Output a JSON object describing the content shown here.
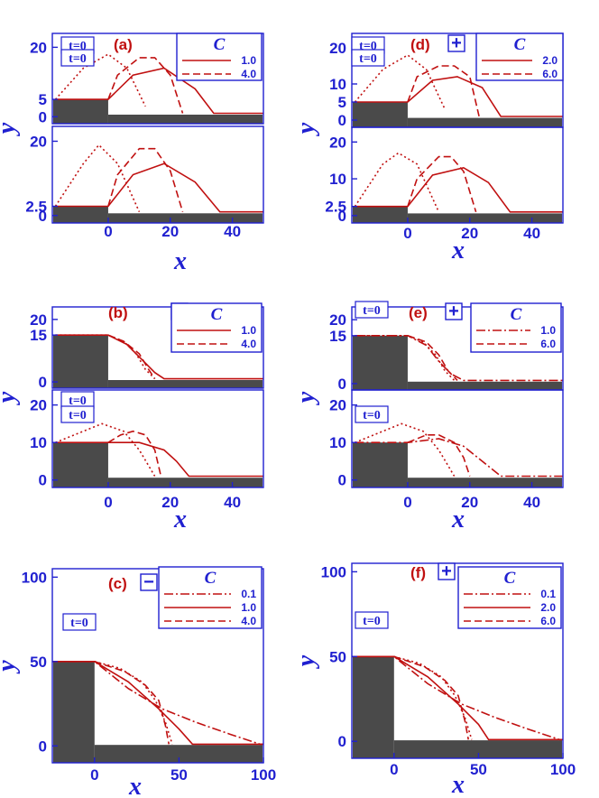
{
  "colors": {
    "axis": "#2020d0",
    "curve": "#c01010",
    "obstacle": "#4a4a4a"
  },
  "chart_data": [
    {
      "id": "a",
      "type": "line",
      "label": "(a)",
      "sign": "−",
      "sign_icon": "minus-box-icon",
      "x_label": "x",
      "y_label": "y",
      "x_ticks": [
        "0",
        "20",
        "40"
      ],
      "legend": {
        "title": "C",
        "values": [
          "1.0",
          "4.0"
        ],
        "styles": [
          "solid",
          "dashed"
        ]
      },
      "panels": [
        {
          "step_height": 5,
          "y_ticks": [
            "20",
            "5",
            "0"
          ],
          "annotation": "t=0",
          "series": [
            {
              "name": "t=0",
              "style": "dotted",
              "x": [
                -17,
                -8,
                0,
                6,
                12
              ],
              "y": [
                5,
                14,
                18,
                14,
                3
              ]
            },
            {
              "name": "1.0",
              "style": "solid",
              "x": [
                -17,
                0,
                8,
                18,
                28,
                34,
                50
              ],
              "y": [
                5,
                5,
                12,
                14,
                8,
                1,
                1
              ]
            },
            {
              "name": "4.0",
              "style": "dashed",
              "x": [
                0,
                3,
                10,
                15,
                20,
                24
              ],
              "y": [
                5,
                12,
                17,
                17,
                12,
                1
              ]
            }
          ]
        },
        {
          "step_height": 2.5,
          "y_ticks": [
            "20",
            "2.5",
            "0"
          ],
          "annotation": "t=0",
          "series": [
            {
              "name": "t=0",
              "style": "dotted",
              "x": [
                -17,
                -8,
                -3,
                3,
                10
              ],
              "y": [
                2.5,
                14,
                19,
                14,
                1
              ]
            },
            {
              "name": "1.0",
              "style": "solid",
              "x": [
                -17,
                0,
                8,
                18,
                28,
                36,
                50
              ],
              "y": [
                2.5,
                2.5,
                11,
                14,
                9,
                1,
                1
              ]
            },
            {
              "name": "4.0",
              "style": "dashed",
              "x": [
                0,
                3,
                10,
                15,
                20,
                24
              ],
              "y": [
                2.5,
                11,
                18,
                18,
                12,
                1
              ]
            }
          ]
        }
      ]
    },
    {
      "id": "d",
      "type": "line",
      "label": "(d)",
      "sign": "+",
      "sign_icon": "plus-box-icon",
      "x_label": "x",
      "y_label": "y",
      "x_ticks": [
        "0",
        "20",
        "40"
      ],
      "legend": {
        "title": "C",
        "values": [
          "2.0",
          "6.0"
        ],
        "styles": [
          "solid",
          "dashed"
        ]
      },
      "panels": [
        {
          "step_height": 5,
          "y_ticks": [
            "20",
            "10",
            "5",
            "0"
          ],
          "annotation": "t=0",
          "series": [
            {
              "name": "t=0",
              "style": "dotted",
              "x": [
                -17,
                -8,
                0,
                6,
                12
              ],
              "y": [
                5,
                14,
                18,
                14,
                3
              ]
            },
            {
              "name": "2.0",
              "style": "solid",
              "x": [
                -17,
                0,
                8,
                16,
                24,
                30,
                50
              ],
              "y": [
                5,
                5,
                11,
                12,
                9,
                1,
                1
              ]
            },
            {
              "name": "6.0",
              "style": "dashed",
              "x": [
                0,
                3,
                10,
                15,
                20,
                23
              ],
              "y": [
                5,
                12,
                15,
                15,
                12,
                1
              ]
            }
          ]
        },
        {
          "step_height": 2.5,
          "y_ticks": [
            "20",
            "10",
            "2.5",
            "0"
          ],
          "annotation": "t=0",
          "series": [
            {
              "name": "t=0",
              "style": "dotted",
              "x": [
                -17,
                -8,
                -3,
                3,
                10
              ],
              "y": [
                2.5,
                14,
                17,
                14,
                1
              ]
            },
            {
              "name": "2.0",
              "style": "solid",
              "x": [
                -17,
                0,
                8,
                18,
                26,
                33,
                50
              ],
              "y": [
                2.5,
                2.5,
                11,
                13,
                9,
                1,
                1
              ]
            },
            {
              "name": "6.0",
              "style": "dashed",
              "x": [
                0,
                3,
                10,
                14,
                18,
                22
              ],
              "y": [
                2.5,
                10,
                16,
                16,
                12,
                1
              ]
            }
          ]
        }
      ]
    },
    {
      "id": "b",
      "type": "line",
      "label": "(b)",
      "sign": "−",
      "sign_icon": "minus-box-icon",
      "x_label": "x",
      "y_label": "y",
      "x_ticks": [
        "0",
        "20",
        "40"
      ],
      "legend": {
        "title": "C",
        "values": [
          "1.0",
          "4.0"
        ],
        "styles": [
          "solid",
          "dashed"
        ]
      },
      "panels": [
        {
          "step_height": 15,
          "y_ticks": [
            "20",
            "15",
            "0"
          ],
          "annotation": "t=0",
          "series": [
            {
              "name": "t=0",
              "style": "dotted",
              "x": [
                -17,
                0,
                5,
                9,
                12,
                15
              ],
              "y": [
                15,
                15,
                13,
                9,
                4,
                1
              ]
            },
            {
              "name": "1.0",
              "style": "solid",
              "x": [
                -17,
                0,
                6,
                11,
                15,
                18,
                50
              ],
              "y": [
                15,
                15,
                12,
                7,
                3,
                1,
                1
              ]
            },
            {
              "name": "4.0",
              "style": "dashed",
              "x": [
                0,
                5,
                10,
                13,
                15
              ],
              "y": [
                15,
                13,
                9,
                4,
                1
              ]
            }
          ]
        },
        {
          "step_height": 10,
          "y_ticks": [
            "20",
            "10",
            "0"
          ],
          "annotation": "t=0",
          "series": [
            {
              "name": "t=0",
              "style": "dotted",
              "x": [
                -17,
                -8,
                -2,
                5,
                10,
                15
              ],
              "y": [
                10,
                13,
                15,
                13,
                8,
                1
              ]
            },
            {
              "name": "1.0",
              "style": "solid",
              "x": [
                -17,
                0,
                10,
                18,
                22,
                26,
                50
              ],
              "y": [
                10,
                10,
                10,
                8,
                5,
                1,
                1
              ]
            },
            {
              "name": "4.0",
              "style": "dashed",
              "x": [
                0,
                4,
                8,
                12,
                15,
                17
              ],
              "y": [
                10,
                12,
                13,
                12,
                8,
                1
              ]
            }
          ]
        }
      ]
    },
    {
      "id": "e",
      "type": "line",
      "label": "(e)",
      "sign": "+",
      "sign_icon": "plus-box-icon",
      "x_label": "x",
      "y_label": "y",
      "x_ticks": [
        "0",
        "20",
        "40"
      ],
      "legend": {
        "title": "C",
        "values": [
          "1.0",
          "6.0"
        ],
        "styles": [
          "dashdot",
          "dashed"
        ]
      },
      "panels": [
        {
          "step_height": 15,
          "y_ticks": [
            "20",
            "15",
            "0"
          ],
          "annotation": "t=0",
          "series": [
            {
              "name": "t=0",
              "style": "dotted",
              "x": [
                -17,
                0,
                5,
                9,
                12,
                15
              ],
              "y": [
                15,
                15,
                13,
                9,
                4,
                1
              ]
            },
            {
              "name": "1.0",
              "style": "dashdot",
              "x": [
                -17,
                0,
                6,
                10,
                14,
                18,
                50
              ],
              "y": [
                15,
                15,
                12,
                7,
                3,
                1,
                1
              ]
            },
            {
              "name": "6.0",
              "style": "dashed",
              "x": [
                0,
                6,
                10,
                13,
                16
              ],
              "y": [
                15,
                13,
                9,
                4,
                1
              ]
            }
          ]
        },
        {
          "step_height": 10,
          "y_ticks": [
            "20",
            "10",
            "0"
          ],
          "annotation": "t=0",
          "series": [
            {
              "name": "t=0",
              "style": "dotted",
              "x": [
                -17,
                -8,
                -2,
                5,
                10,
                15
              ],
              "y": [
                10,
                13,
                15,
                13,
                8,
                1
              ]
            },
            {
              "name": "1.0",
              "style": "dashdot",
              "x": [
                -17,
                0,
                10,
                18,
                24,
                30,
                50
              ],
              "y": [
                10,
                10,
                11,
                9,
                5,
                1,
                1
              ]
            },
            {
              "name": "6.0",
              "style": "dashed",
              "x": [
                0,
                6,
                10,
                15,
                18,
                20
              ],
              "y": [
                10,
                12,
                12,
                10,
                6,
                1
              ]
            }
          ]
        }
      ]
    },
    {
      "id": "c",
      "type": "line",
      "label": "(c)",
      "sign": "−",
      "sign_icon": "minus-box-icon",
      "x_label": "x",
      "y_label": "y",
      "x_ticks": [
        "0",
        "50",
        "100"
      ],
      "legend": {
        "title": "C",
        "values": [
          "0.1",
          "1.0",
          "4.0"
        ],
        "styles": [
          "dashdot",
          "solid",
          "dashed"
        ]
      },
      "panels": [
        {
          "step_height": 50,
          "y_ticks": [
            "100",
            "50",
            "0"
          ],
          "annotation": "t=0",
          "series": [
            {
              "name": "t=0",
              "style": "dotted",
              "x": [
                0,
                15,
                28,
                36,
                42,
                46
              ],
              "y": [
                50,
                46,
                38,
                27,
                14,
                1
              ]
            },
            {
              "name": "0.1",
              "style": "dashdot",
              "x": [
                -25,
                0,
                20,
                40,
                60,
                80,
                98,
                100
              ],
              "y": [
                50,
                50,
                34,
                22,
                14,
                7,
                1,
                1
              ]
            },
            {
              "name": "1.0",
              "style": "solid",
              "x": [
                -25,
                0,
                20,
                38,
                50,
                58,
                100
              ],
              "y": [
                50,
                50,
                38,
                22,
                10,
                1,
                1
              ]
            },
            {
              "name": "4.0",
              "style": "dashed",
              "x": [
                0,
                18,
                30,
                38,
                42,
                44
              ],
              "y": [
                50,
                44,
                36,
                27,
                12,
                1
              ]
            }
          ]
        }
      ]
    },
    {
      "id": "f",
      "type": "line",
      "label": "(f)",
      "sign": "+",
      "sign_icon": "plus-box-icon",
      "x_label": "x",
      "y_label": "y",
      "x_ticks": [
        "0",
        "50",
        "100"
      ],
      "legend": {
        "title": "C",
        "values": [
          "0.1",
          "2.0",
          "6.0"
        ],
        "styles": [
          "dashdot",
          "solid",
          "dashed"
        ]
      },
      "panels": [
        {
          "step_height": 50,
          "y_ticks": [
            "100",
            "50",
            "0"
          ],
          "annotation": "t=0",
          "series": [
            {
              "name": "t=0",
              "style": "dotted",
              "x": [
                0,
                15,
                28,
                36,
                42,
                46
              ],
              "y": [
                50,
                46,
                38,
                27,
                14,
                1
              ]
            },
            {
              "name": "0.1",
              "style": "dashdot",
              "x": [
                -25,
                0,
                20,
                40,
                60,
                80,
                98,
                100
              ],
              "y": [
                50,
                50,
                34,
                22,
                14,
                7,
                1,
                1
              ]
            },
            {
              "name": "2.0",
              "style": "solid",
              "x": [
                -25,
                0,
                20,
                38,
                50,
                56,
                100
              ],
              "y": [
                50,
                50,
                38,
                22,
                10,
                1,
                1
              ]
            },
            {
              "name": "6.0",
              "style": "dashed",
              "x": [
                0,
                18,
                30,
                38,
                42,
                44
              ],
              "y": [
                50,
                44,
                36,
                27,
                12,
                1
              ]
            }
          ]
        }
      ]
    }
  ]
}
